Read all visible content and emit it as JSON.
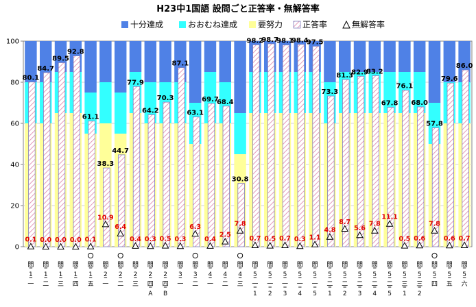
{
  "chart_data": {
    "type": "bar",
    "title": "H23中1国語 設問ごと正答率・無解答率",
    "ylim": [
      0,
      100
    ],
    "yticks": [
      0,
      20,
      40,
      60,
      80,
      100
    ],
    "legend": {
      "position": "top",
      "items": [
        "十分達成",
        "おおむね達成",
        "要努力",
        "正答率",
        "無解答率"
      ]
    },
    "colors": {
      "juubun": "#4f81e6",
      "oomune": "#33ffff",
      "youdoryoku": "#ffff99",
      "seitou_fill": "#ffffff",
      "seitou_hatch": "#e39ab9",
      "seitou_edge": "#7f7fbf",
      "muka_label": "#e00000"
    },
    "categories": [
      {
        "label": [
          "問",
          "1",
          "一"
        ],
        "circle": false
      },
      {
        "label": [
          "問",
          "1",
          "二"
        ],
        "circle": false
      },
      {
        "label": [
          "問",
          "1",
          "三"
        ],
        "circle": false
      },
      {
        "label": [
          "問",
          "1",
          "四"
        ],
        "circle": false
      },
      {
        "label": [
          "問",
          "1",
          "五"
        ],
        "circle": true
      },
      {
        "label": [
          "問",
          "2",
          "一"
        ],
        "circle": false
      },
      {
        "label": [
          "問",
          "2",
          "二"
        ],
        "circle": true
      },
      {
        "label": [
          "問",
          "2",
          "三"
        ],
        "circle": false
      },
      {
        "label": [
          "問",
          "2",
          "四",
          "A"
        ],
        "circle": false
      },
      {
        "label": [
          "問",
          "2",
          "四",
          "B"
        ],
        "circle": false
      },
      {
        "label": [
          "問",
          "3",
          "一"
        ],
        "circle": false
      },
      {
        "label": [
          "問",
          "3",
          "二"
        ],
        "circle": true
      },
      {
        "label": [
          "問",
          "4",
          "一"
        ],
        "circle": false
      },
      {
        "label": [
          "問",
          "4",
          "二"
        ],
        "circle": false
      },
      {
        "label": [
          "問",
          "4",
          "三"
        ],
        "circle": true
      },
      {
        "label": [
          "問",
          "5",
          "一",
          "1"
        ],
        "circle": false
      },
      {
        "label": [
          "問",
          "5",
          "一",
          "2"
        ],
        "circle": false
      },
      {
        "label": [
          "問",
          "5",
          "一",
          "3"
        ],
        "circle": false
      },
      {
        "label": [
          "問",
          "5",
          "一",
          "4"
        ],
        "circle": false
      },
      {
        "label": [
          "問",
          "5",
          "一",
          "5"
        ],
        "circle": false
      },
      {
        "label": [
          "問",
          "5",
          "二",
          "1"
        ],
        "circle": false
      },
      {
        "label": [
          "問",
          "5",
          "二",
          "2"
        ],
        "circle": false
      },
      {
        "label": [
          "問",
          "5",
          "二",
          "3"
        ],
        "circle": false
      },
      {
        "label": [
          "問",
          "5",
          "二",
          "4"
        ],
        "circle": false
      },
      {
        "label": [
          "問",
          "5",
          "二",
          "5"
        ],
        "circle": false
      },
      {
        "label": [
          "問",
          "5",
          "三",
          "1"
        ],
        "circle": false
      },
      {
        "label": [
          "問",
          "5",
          "三",
          "2"
        ],
        "circle": false
      },
      {
        "label": [
          "問",
          "5",
          "四"
        ],
        "circle": true
      },
      {
        "label": [
          "問",
          "5",
          "五"
        ],
        "circle": false
      },
      {
        "label": [
          "問",
          "5",
          "六"
        ],
        "circle": false
      }
    ],
    "thresholds": {
      "youdoryoku_upper": [
        60,
        60,
        65,
        65,
        55,
        60,
        55,
        65,
        60,
        60,
        60,
        50,
        60,
        60,
        45,
        65,
        65,
        65,
        65,
        65,
        60,
        65,
        65,
        65,
        65,
        65,
        65,
        50,
        60,
        60
      ],
      "oomune_upper": [
        80,
        80,
        85,
        85,
        75,
        80,
        75,
        85,
        80,
        80,
        80,
        70,
        85,
        80,
        65,
        85,
        85,
        85,
        85,
        85,
        80,
        85,
        85,
        85,
        85,
        85,
        85,
        70,
        80,
        80
      ]
    },
    "series": [
      {
        "name": "正答率",
        "values": [
          80.1,
          84.7,
          89.5,
          92.8,
          61.1,
          38.3,
          44.7,
          77.9,
          64.2,
          70.3,
          87.1,
          63.1,
          69.7,
          68.4,
          30.8,
          98.2,
          98.7,
          98.1,
          98.4,
          97.5,
          73.3,
          81.3,
          82.9,
          83.2,
          67.8,
          76.1,
          68.0,
          57.8,
          79.6,
          86.0
        ],
        "labels": [
          "80.1",
          "84.7",
          "89.5",
          "92.8",
          "61.1",
          "38.3",
          "44.7",
          "77.9",
          "64.2",
          "70.3",
          "87.1",
          "63.1",
          "69.7",
          "68.4",
          "30.8",
          "98.2",
          "98.7",
          "98.1",
          "98.4",
          "97.5",
          "73.3",
          "81.3",
          "82.9",
          "83.2",
          "67.8",
          "76.1",
          "68.0",
          "57.8",
          "79.6",
          "86.0"
        ]
      },
      {
        "name": "無解答率",
        "values": [
          0.1,
          0.0,
          0.0,
          0.0,
          0.1,
          10.9,
          6.4,
          0.4,
          0.3,
          0.5,
          0.3,
          6.3,
          0.4,
          2.5,
          7.8,
          0.7,
          0.5,
          0.7,
          0.3,
          1.1,
          4.8,
          8.7,
          5.6,
          7.8,
          11.1,
          0.5,
          0.6,
          7.8,
          0.6,
          0.7
        ],
        "labels": [
          "0.1",
          "0.0",
          "0.0",
          "0.0",
          "0.1",
          "10.9",
          "6.4",
          "0.4",
          "0.3",
          "0.5",
          "0.3",
          "6.3",
          "0.4",
          "2.5",
          "7.8",
          "0.7",
          "0.5",
          "0.7",
          "0.3",
          "1.1",
          "4.8",
          "8.7",
          "5.6",
          "7.8",
          "11.1",
          "0.5",
          "0.6",
          "7.8",
          "0.6",
          "0.7"
        ]
      }
    ]
  }
}
